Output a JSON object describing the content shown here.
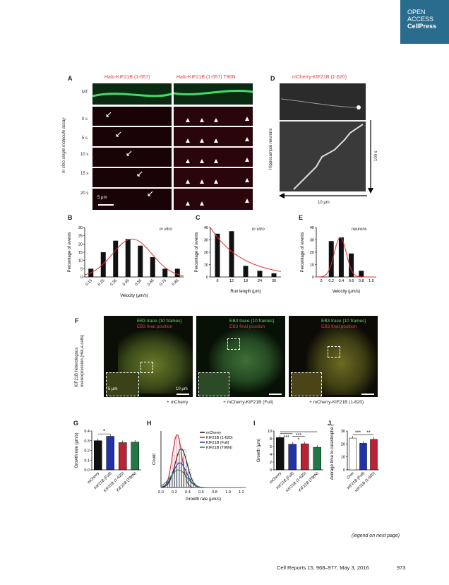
{
  "badge": {
    "line1": "OPEN",
    "line2": "ACCESS",
    "line3": "CellPress"
  },
  "panelA": {
    "label": "A",
    "col1": "Halo-KIF21B (1-657)",
    "col2": "Halo-KIF21B (1-657) T96N",
    "rowlabel": "In vitro single molecule assay",
    "mt": "MT",
    "times": [
      "0 s",
      "5 s",
      "10 s",
      "15 s",
      "20 s"
    ],
    "scale": "5 μm"
  },
  "panelD": {
    "label": "D",
    "title": "mCherry-KIF21B (1-620)",
    "side": "Hippocampal neurons",
    "time": "100 s",
    "dist": "10 μm"
  },
  "panelB": {
    "label": "B",
    "tag": "in vitro"
  },
  "panelC": {
    "label": "C",
    "tag": "in vitro"
  },
  "panelE": {
    "label": "E",
    "tag": "neurons"
  },
  "panelF": {
    "label": "F",
    "side1": "KIF21B heterologous",
    "side2": "overexpression (HeLa cells)",
    "trace": "EB3 trace (10 frames)",
    "final": "EB3 final position",
    "scale_inset": "5 μm",
    "scale_main": "10 μm",
    "caption1": "+ mCherry",
    "caption2": "+ mCherry-KIF21B (Full)",
    "caption3": "+ mCherry-KIF21B (1-620)"
  },
  "panelG": {
    "label": "G"
  },
  "panelH": {
    "label": "H"
  },
  "panelI": {
    "label": "I"
  },
  "panelJ": {
    "label": "J"
  },
  "footer": {
    "legend": "(legend on next page)",
    "cite": "Cell Reports 15, 968–977, May 3, 2016",
    "page": "973"
  },
  "colors": {
    "badge": "#2a6c8e",
    "curve": "#e03030",
    "bar": "#111111",
    "g_blue": "#2233aa",
    "g_red": "#bb2233",
    "g_green": "#227744"
  },
  "chart_data": [
    {
      "type": "bar",
      "panel": "B",
      "ylabel": "Percentage of events",
      "xlabel": "Velocity (μm/s)",
      "categories": [
        "0.15",
        "0.25",
        "0.35",
        "0.45",
        "0.55",
        "0.65",
        "0.75",
        "0.85"
      ],
      "values": [
        5,
        15,
        22,
        23,
        19,
        12,
        5,
        5
      ],
      "ylim": [
        0,
        30
      ],
      "yticks": [
        0,
        5,
        10,
        15,
        20,
        25,
        30
      ],
      "fit": "gaussian"
    },
    {
      "type": "bar",
      "panel": "C",
      "ylabel": "Percentage of events",
      "xlabel": "Run length (μm)",
      "categories": [
        "6",
        "12",
        "18",
        "24",
        "30"
      ],
      "values": [
        35,
        37,
        9,
        5,
        3
      ],
      "ylim": [
        0,
        40
      ],
      "yticks": [
        0,
        10,
        20,
        30,
        40
      ],
      "fit": "exponential"
    },
    {
      "type": "bar",
      "panel": "E",
      "ylabel": "Percentage of events",
      "xlabel": "Velocity (μm/s)",
      "categories": [
        "0",
        "0.2",
        "0.4",
        "0.6",
        "0.8",
        "1.0"
      ],
      "values": [
        null,
        29,
        32,
        19,
        5,
        null
      ],
      "ylim": [
        0,
        40
      ],
      "yticks": [
        0,
        10,
        20,
        30,
        40
      ],
      "fit": "gaussian"
    },
    {
      "type": "bar",
      "panel": "G",
      "ylabel": "Growth rate (μm/s)",
      "categories": [
        "mCherry",
        "KIF21B (Full)",
        "KIF21B (1-620)",
        "KIF21B (T96N)"
      ],
      "values": [
        0.3,
        0.345,
        0.28,
        0.285
      ],
      "ylim": [
        0,
        0.4
      ],
      "yticks": [
        "0.0",
        "0.1",
        "0.2",
        "0.3",
        "0.4"
      ],
      "sig": "*"
    },
    {
      "type": "line",
      "panel": "H",
      "ylabel": "Count",
      "xlabel": "Growth rate (μm/s)",
      "xticks": [
        "0.0",
        "0.2",
        "0.4",
        "0.6",
        "0.8",
        "1.0",
        "1.2"
      ],
      "series": [
        {
          "name": "mCherry"
        },
        {
          "name": "KIF21B (1-620)"
        },
        {
          "name": "KIF21B (Full)"
        },
        {
          "name": "KIF21B (T96N)"
        }
      ]
    },
    {
      "type": "bar",
      "panel": "I",
      "ylabel": "Growth (μm)",
      "categories": [
        "mCherry",
        "KIF21B (Full)",
        "KIF21B (1-620)",
        "KIF21B (T96N)"
      ],
      "values": [
        8.3,
        6.6,
        6.7,
        5.8
      ],
      "ylim": [
        0,
        10
      ],
      "yticks": [
        "0",
        "2",
        "4",
        "6",
        "8",
        "10"
      ],
      "sig": [
        "***",
        "*",
        "***"
      ]
    },
    {
      "type": "bar",
      "panel": "J",
      "ylabel": "Average time to catastrophe (s)",
      "categories": [
        "Cher",
        "KIF21B (Full)",
        "KIF21B (1-620)"
      ],
      "values": [
        24.5,
        20.5,
        23.5
      ],
      "ylim": [
        0,
        30
      ],
      "yticks": [
        "0",
        "10",
        "20",
        "30"
      ],
      "sig": [
        "***",
        "**"
      ]
    }
  ]
}
